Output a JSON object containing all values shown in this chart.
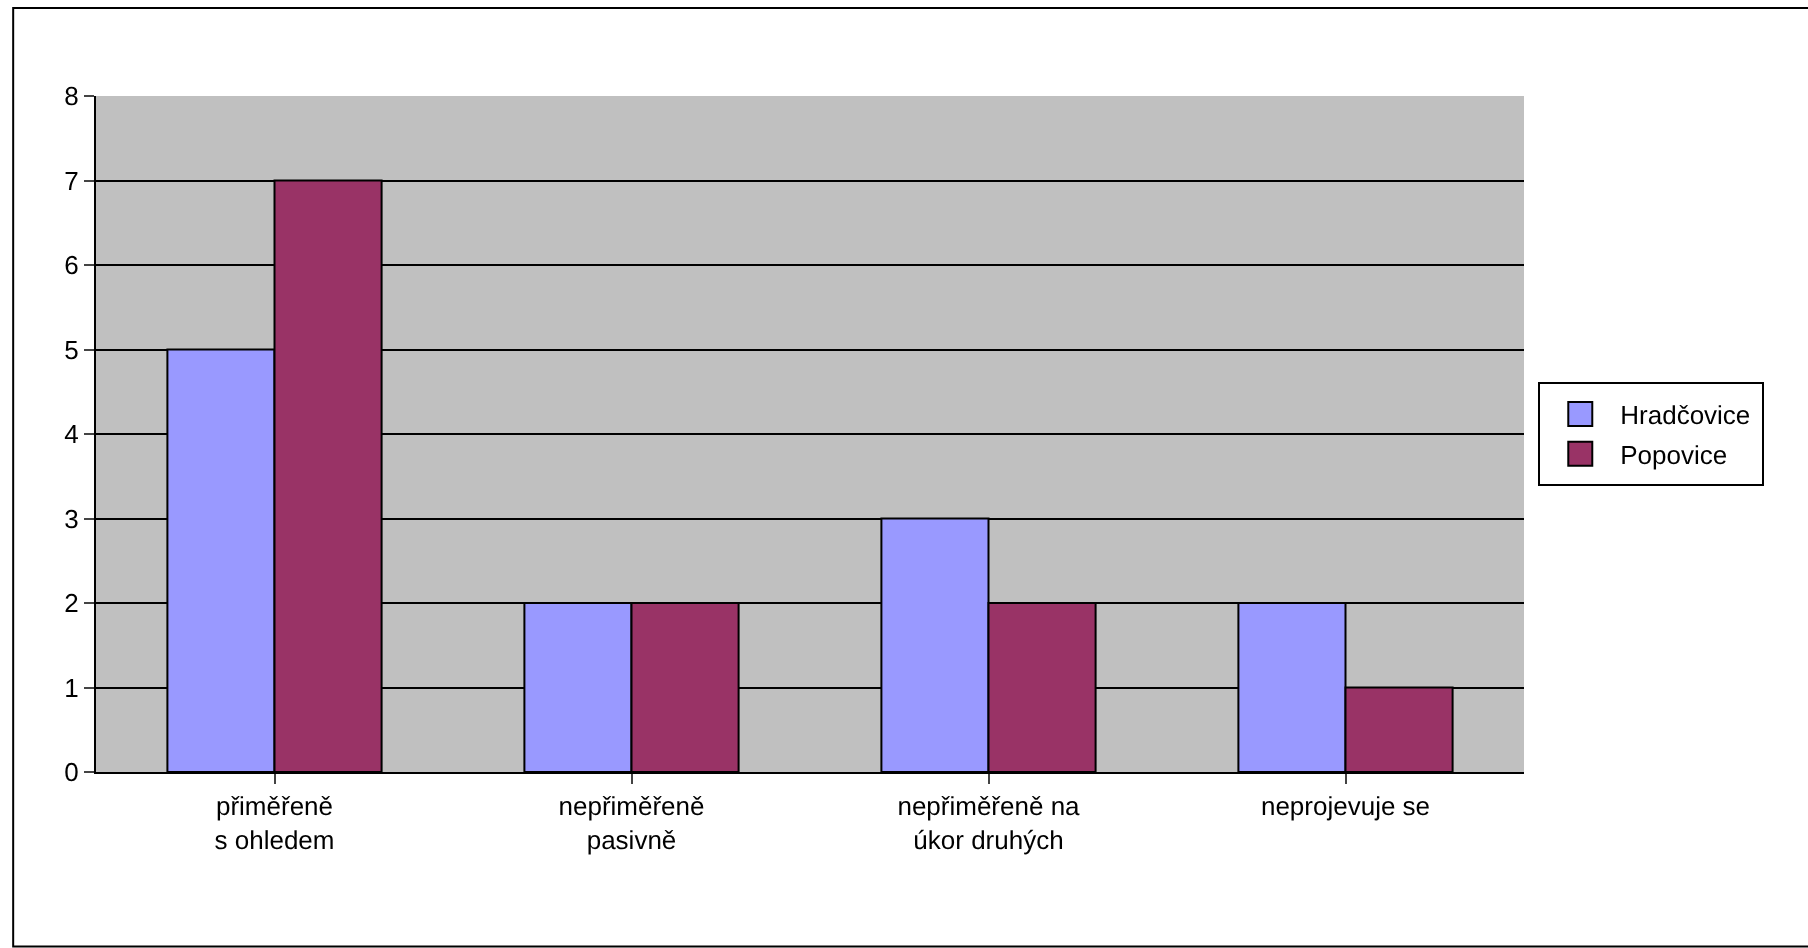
{
  "chart_data": {
    "type": "bar",
    "categories": [
      "přiměřeně\ns ohledem",
      "nepřiměřeně\npasivně",
      "nepřiměřeně na\núkor druhých",
      "neprojevuje se"
    ],
    "series": [
      {
        "name": "Hradčovice",
        "color": "#9999ff",
        "values": [
          5,
          2,
          3,
          2
        ]
      },
      {
        "name": "Popovice",
        "color": "#993366",
        "values": [
          7,
          2,
          2,
          1
        ]
      }
    ],
    "ylim": [
      0,
      8
    ],
    "yticks": [
      0,
      1,
      2,
      3,
      4,
      5,
      6,
      7,
      8
    ],
    "grid": "y",
    "legend": "right"
  }
}
